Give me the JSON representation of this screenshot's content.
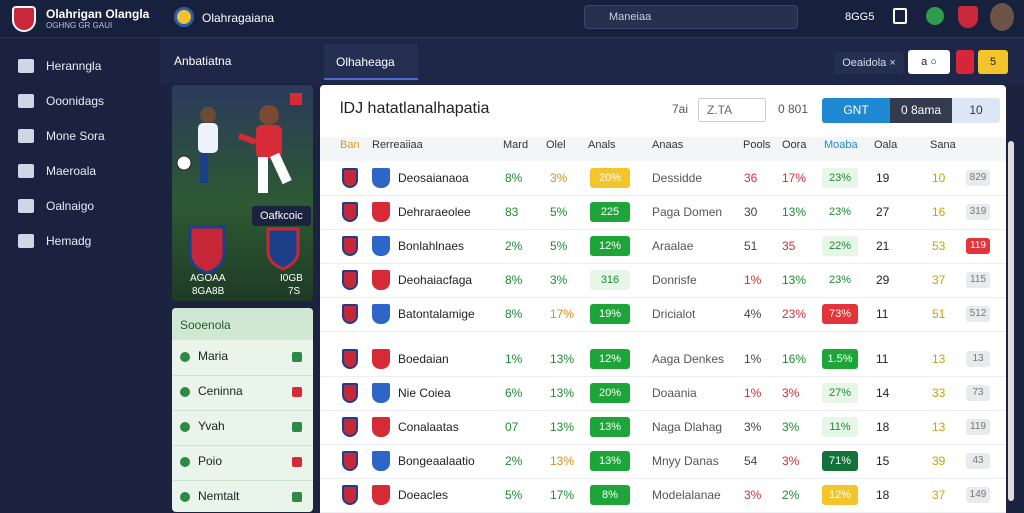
{
  "header": {
    "brand_title": "Olahrigan Olangla",
    "brand_subtitle": "OGHNG GR GAUI",
    "app_name": "Olahragaiana",
    "search": "Maneiaa",
    "user_code": "8GG5"
  },
  "sidebar": {
    "items": [
      "Heranngla",
      "Ooonidags",
      "Mone Sora",
      "Maeroala",
      "Oalnaigo",
      "Hemadg"
    ]
  },
  "subbar": {
    "section": "Anbatiatna",
    "tab": "Olhaheaga",
    "filter": "Oeaidola ×",
    "buttons": [
      "a ○",
      "5"
    ]
  },
  "match_card": {
    "player_label": "Oafkcoic",
    "team1_name": "AGOAA",
    "team1_score": "8GA8B",
    "team2_name": "I0GB",
    "team2_score": "7S"
  },
  "side_list": {
    "title": "Sooenola",
    "items": [
      "Maria",
      "Ceninna",
      "Yvah",
      "Poio",
      "Nemtalt"
    ]
  },
  "table": {
    "title": "lDJ hatatlanalhapatia",
    "controls": [
      "7ai",
      "Z.TA",
      "0 801"
    ],
    "tabs": [
      "GNT",
      "0 8ama",
      "10"
    ],
    "columns": [
      "Ban",
      "Rerreaiiaa",
      "Mard",
      "Olel",
      "Anals",
      "Anaas",
      "Pools",
      "Oora",
      "Moaba",
      "Oala",
      "Sana"
    ],
    "rows": [
      {
        "team": "Deosaianaoa",
        "c1": "8%",
        "c2": "3%",
        "badge": "20%",
        "badge_tone": "yellow",
        "opponent": "Dessidde",
        "p": "36",
        "o": "17%",
        "m": "23%",
        "m_tone": "light",
        "v1": "19",
        "v2": "10",
        "last": "829",
        "last_tone": "gray"
      },
      {
        "team": "Dehraraeolee",
        "c1": "83",
        "c2": "5%",
        "badge": "225",
        "badge_tone": "green",
        "opponent": "Paga Domen",
        "p": "30",
        "o": "13%",
        "m": "23%",
        "m_tone": "none",
        "v1": "27",
        "v2": "16",
        "last": "319",
        "last_tone": "gray"
      },
      {
        "team": "Bonlahlnaes",
        "c1": "2%",
        "c2": "5%",
        "badge": "12%",
        "badge_tone": "green",
        "opponent": "Araalae",
        "p": "51",
        "o": "35",
        "m": "22%",
        "m_tone": "light",
        "v1": "21",
        "v2": "53",
        "last": "119",
        "last_tone": "red"
      },
      {
        "team": "Deohaiacfaga",
        "c1": "8%",
        "c2": "3%",
        "badge": "316",
        "badge_tone": "light",
        "opponent": "Donrisfe",
        "p": "1%",
        "o": "13%",
        "m": "23%",
        "m_tone": "none",
        "v1": "29",
        "v2": "37",
        "last": "115",
        "last_tone": "gray"
      },
      {
        "team": "Batontalamige",
        "c1": "8%",
        "c2": "17%",
        "badge": "19%",
        "badge_tone": "green",
        "opponent": "Dricialot",
        "p": "4%",
        "o": "23%",
        "m": "73%",
        "m_tone": "red",
        "v1": "11",
        "v2": "51",
        "last": "512",
        "last_tone": "gray"
      },
      {
        "team": "Boedaian",
        "c1": "1%",
        "c2": "13%",
        "badge": "12%",
        "badge_tone": "green",
        "opponent": "Aaga Denkes",
        "p": "1%",
        "o": "16%",
        "m": "1.5%",
        "m_tone": "green",
        "v1": "11",
        "v2": "13",
        "last": "13",
        "last_tone": "gray"
      },
      {
        "team": "Nie Coiea",
        "c1": "6%",
        "c2": "13%",
        "badge": "20%",
        "badge_tone": "green",
        "opponent": "Doaania",
        "p": "1%",
        "o": "3%",
        "m": "27%",
        "m_tone": "light",
        "v1": "14",
        "v2": "33",
        "last": "73",
        "last_tone": "gray"
      },
      {
        "team": "Conalaatas",
        "c1": "07",
        "c2": "13%",
        "badge": "13%",
        "badge_tone": "green",
        "opponent": "Naga Dlahag",
        "p": "3%",
        "o": "3%",
        "m": "11%",
        "m_tone": "light",
        "v1": "18",
        "v2": "13",
        "last": "119",
        "last_tone": "gray"
      },
      {
        "team": "Bongeaalaatio",
        "c1": "2%",
        "c2": "13%",
        "badge": "13%",
        "badge_tone": "green",
        "opponent": "Mnyy Danas",
        "p": "54",
        "o": "3%",
        "m": "71%",
        "m_tone": "dark",
        "v1": "15",
        "v2": "39",
        "last": "43",
        "last_tone": "gray"
      },
      {
        "team": "Doeacles",
        "c1": "5%",
        "c2": "17%",
        "badge": "8%",
        "badge_tone": "green",
        "opponent": "Modelalanae",
        "p": "3%",
        "o": "2%",
        "m": "12%",
        "m_tone": "yellow",
        "v1": "18",
        "v2": "37",
        "last": "149",
        "last_tone": "gray"
      }
    ]
  }
}
